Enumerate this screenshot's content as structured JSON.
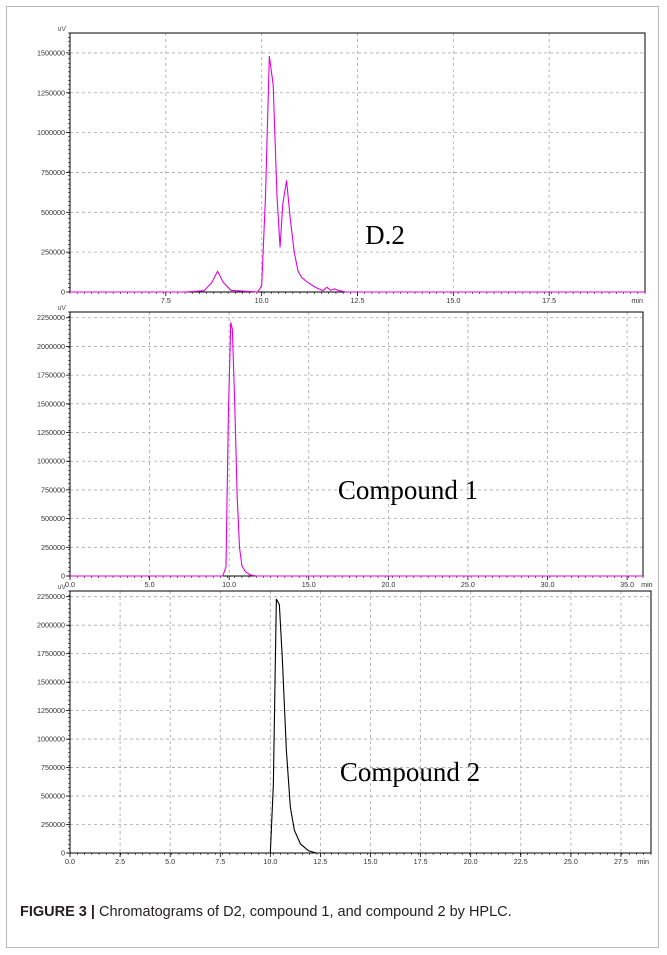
{
  "caption": {
    "label": "FIGURE 3 |",
    "text": " Chromatograms of D2, compound 1, and compound 2 by HPLC."
  },
  "chart_data": [
    {
      "type": "line",
      "label": "D.2",
      "y_unit": "uV",
      "x_unit": "min",
      "color": "#e100e1",
      "xlim": [
        5.0,
        20.0
      ],
      "ylim": [
        0,
        1625000
      ],
      "x_ticks": [
        "7.5",
        "10.0",
        "12.5",
        "15.0",
        "17.5"
      ],
      "x_tick_values": [
        7.5,
        10.0,
        12.5,
        15.0,
        17.5
      ],
      "y_ticks": [
        "0",
        "250000",
        "500000",
        "750000",
        "1000000",
        "1250000",
        "1500000"
      ],
      "y_tick_values": [
        0,
        250000,
        500000,
        750000,
        1000000,
        1250000,
        1500000
      ],
      "series": [
        {
          "x": [
            5.0,
            8.0,
            8.5,
            8.7,
            8.85,
            9.0,
            9.2,
            9.9,
            10.0,
            10.1,
            10.2,
            10.3,
            10.4,
            10.48,
            10.55,
            10.65,
            10.75,
            10.85,
            10.95,
            11.05,
            11.2,
            11.4,
            11.6,
            11.7,
            11.8,
            11.9,
            12.0,
            12.2,
            20.0
          ],
          "y": [
            0,
            0,
            8000,
            60000,
            130000,
            60000,
            10000,
            0,
            40000,
            600000,
            1480000,
            1300000,
            600000,
            280000,
            550000,
            700000,
            450000,
            250000,
            130000,
            90000,
            60000,
            30000,
            8000,
            30000,
            10000,
            20000,
            10000,
            0,
            0
          ]
        }
      ]
    },
    {
      "type": "line",
      "label": "Compound 1",
      "y_unit": "uV",
      "x_unit": "min",
      "color": "#e100e1",
      "xlim": [
        0.0,
        36.0
      ],
      "ylim": [
        0,
        2300000
      ],
      "x_ticks": [
        "0.0",
        "5.0",
        "10.0",
        "15.0",
        "20.0",
        "25.0",
        "30.0",
        "35.0"
      ],
      "x_tick_values": [
        0,
        5,
        10,
        15,
        20,
        25,
        30,
        35
      ],
      "y_ticks": [
        "0",
        "250000",
        "500000",
        "750000",
        "1000000",
        "1250000",
        "1500000",
        "1750000",
        "2000000",
        "2250000"
      ],
      "y_tick_values": [
        0,
        250000,
        500000,
        750000,
        1000000,
        1250000,
        1500000,
        1750000,
        2000000,
        2250000
      ],
      "series": [
        {
          "x": [
            0,
            9.6,
            9.8,
            9.95,
            10.1,
            10.2,
            10.35,
            10.5,
            10.65,
            10.8,
            11.0,
            11.3,
            11.7,
            36.0
          ],
          "y": [
            0,
            0,
            80000,
            1400000,
            2210000,
            2150000,
            1500000,
            700000,
            250000,
            90000,
            40000,
            10000,
            0,
            0
          ]
        }
      ]
    },
    {
      "type": "line",
      "label": "Compound 2",
      "y_unit": "uV",
      "x_unit": "min",
      "color": "#000000",
      "xlim": [
        0.0,
        29.0
      ],
      "ylim": [
        0,
        2300000
      ],
      "x_ticks": [
        "0.0",
        "2.5",
        "5.0",
        "7.5",
        "10.0",
        "12.5",
        "15.0",
        "17.5",
        "20.0",
        "22.5",
        "25.0",
        "27.5"
      ],
      "x_tick_values": [
        0,
        2.5,
        5,
        7.5,
        10,
        12.5,
        15,
        17.5,
        20,
        22.5,
        25,
        27.5
      ],
      "y_ticks": [
        "0",
        "250000",
        "500000",
        "750000",
        "1000000",
        "1250000",
        "1500000",
        "1750000",
        "2000000",
        "2250000"
      ],
      "y_tick_values": [
        0,
        250000,
        500000,
        750000,
        1000000,
        1250000,
        1500000,
        1750000,
        2000000,
        2250000
      ],
      "series": [
        {
          "x": [
            0,
            10.0,
            10.15,
            10.3,
            10.45,
            10.6,
            10.8,
            11.0,
            11.2,
            11.5,
            11.9,
            12.3,
            29.0
          ],
          "y": [
            0,
            0,
            600000,
            2230000,
            2180000,
            1700000,
            900000,
            400000,
            200000,
            80000,
            20000,
            0,
            0
          ]
        }
      ]
    }
  ]
}
